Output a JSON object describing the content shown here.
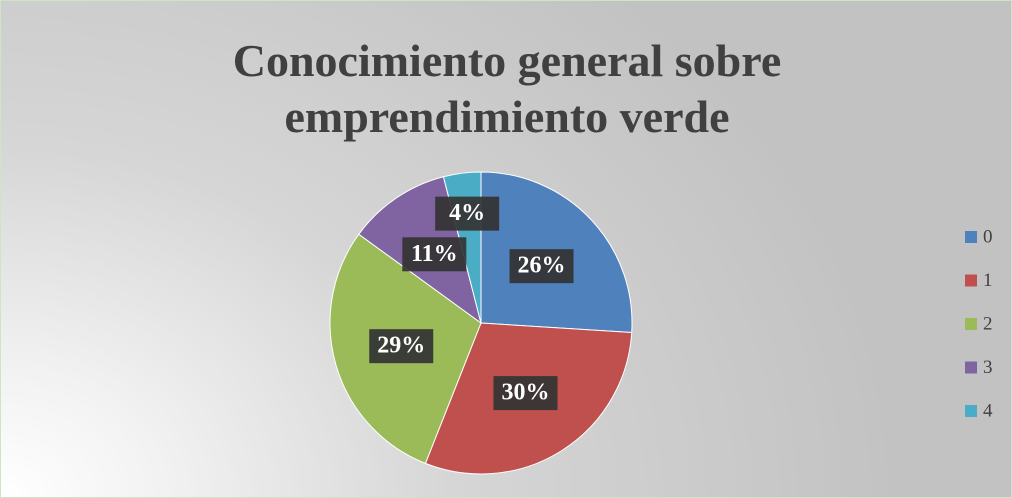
{
  "chart_data": {
    "type": "pie",
    "title": "Conocimiento general sobre emprendimiento verde",
    "categories": [
      "0",
      "1",
      "2",
      "3",
      "4"
    ],
    "values": [
      26,
      30,
      29,
      11,
      4
    ],
    "value_labels": [
      "26%",
      "30%",
      "29%",
      "11%",
      "4%"
    ],
    "colors": [
      "#4f81bd",
      "#c0504d",
      "#9bbb59",
      "#8064a2",
      "#4bacc6"
    ],
    "legend": "right"
  }
}
